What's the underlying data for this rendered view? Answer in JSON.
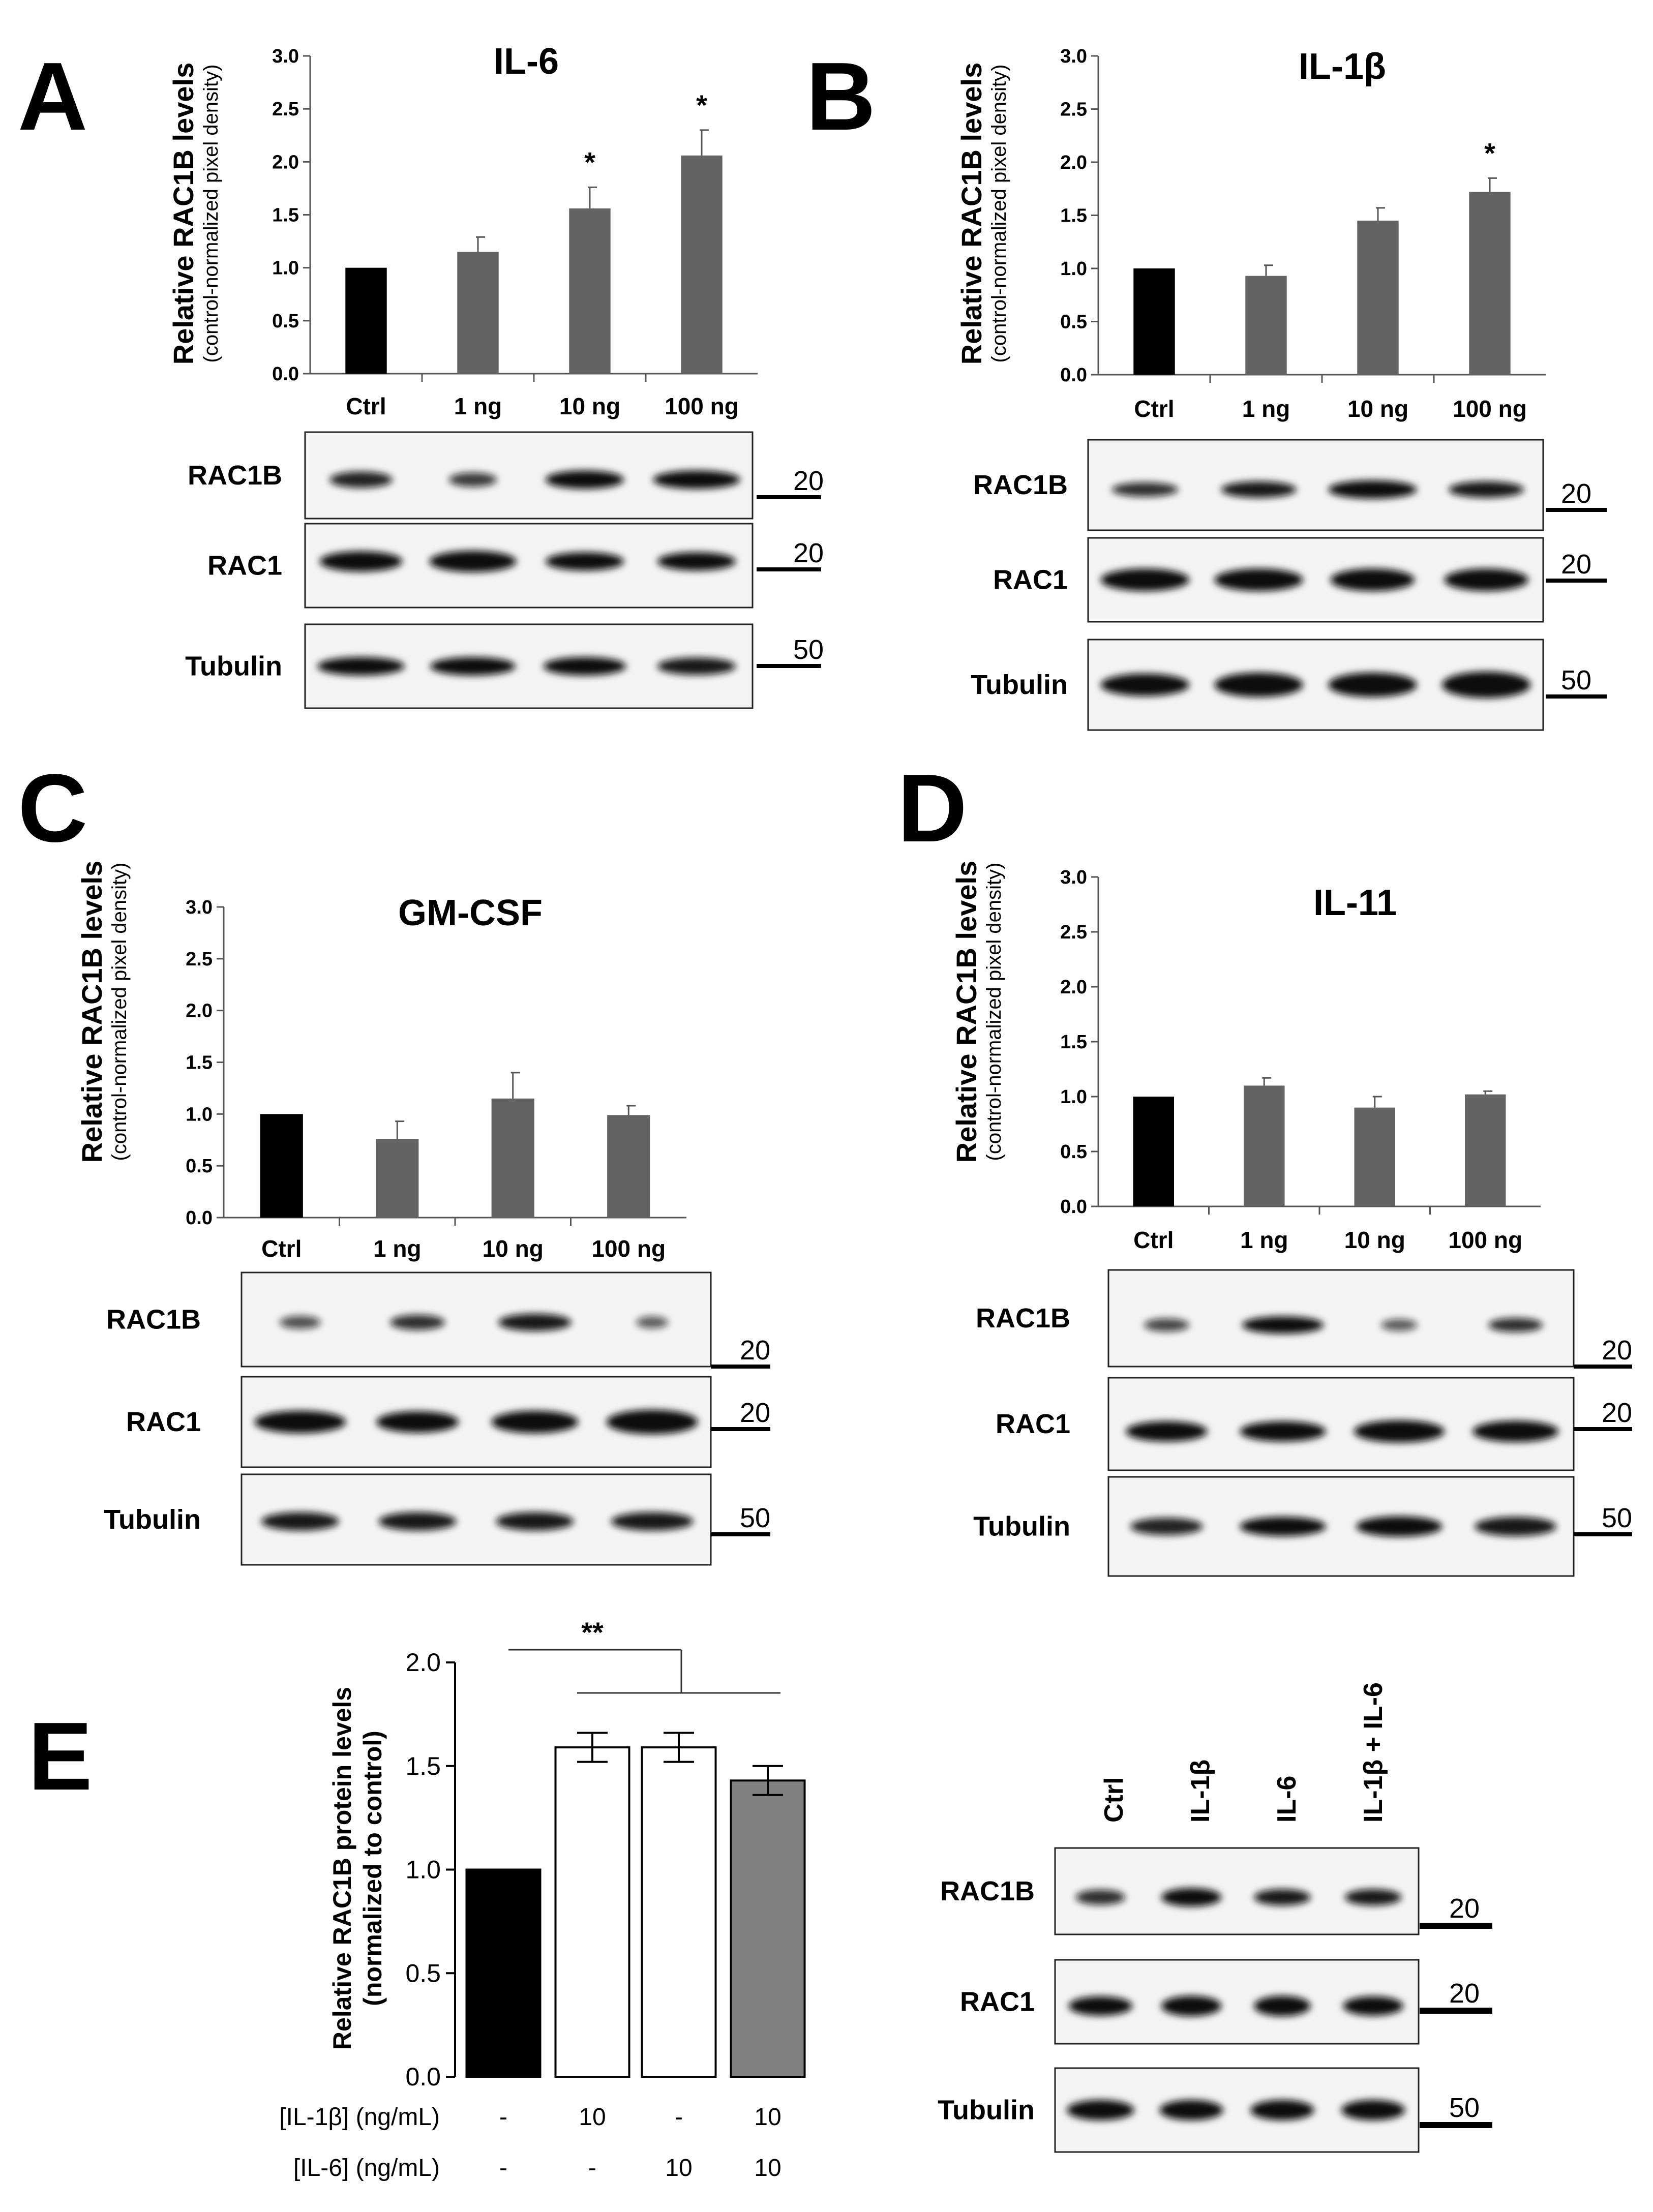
{
  "chart_data": [
    {
      "panel": "A",
      "type": "bar",
      "title": "IL-6",
      "ylabel": "Relative RAC1B levels",
      "ylabel_sub": "(control-normalized pixel density)",
      "categories": [
        "Ctrl",
        "1 ng",
        "10 ng",
        "100 ng"
      ],
      "values": [
        1.0,
        1.15,
        1.56,
        2.06
      ],
      "errors": [
        0.0,
        0.14,
        0.2,
        0.24
      ],
      "significance": [
        "",
        "",
        "*",
        "*"
      ],
      "ylim": [
        0,
        3.0
      ],
      "yticks": [
        "0.0",
        "0.5",
        "1.0",
        "1.5",
        "2.0",
        "2.5",
        "3.0"
      ],
      "bar_colors": [
        "#000000",
        "#636363",
        "#636363",
        "#636363"
      ],
      "blots": [
        {
          "label": "RAC1B",
          "mw": "20"
        },
        {
          "label": "RAC1",
          "mw": "20"
        },
        {
          "label": "Tubulin",
          "mw": "50"
        }
      ]
    },
    {
      "panel": "B",
      "type": "bar",
      "title": "IL-1β",
      "ylabel": "Relative RAC1B levels",
      "ylabel_sub": "(control-normalized pixel density)",
      "categories": [
        "Ctrl",
        "1 ng",
        "10 ng",
        "100 ng"
      ],
      "values": [
        1.0,
        0.93,
        1.45,
        1.72
      ],
      "errors": [
        0.0,
        0.1,
        0.12,
        0.13
      ],
      "significance": [
        "",
        "",
        "",
        "*"
      ],
      "ylim": [
        0,
        3.0
      ],
      "yticks": [
        "0.0",
        "0.5",
        "1.0",
        "1.5",
        "2.0",
        "2.5",
        "3.0"
      ],
      "bar_colors": [
        "#000000",
        "#636363",
        "#636363",
        "#636363"
      ],
      "blots": [
        {
          "label": "RAC1B",
          "mw": "20"
        },
        {
          "label": "RAC1",
          "mw": "20"
        },
        {
          "label": "Tubulin",
          "mw": "50"
        }
      ]
    },
    {
      "panel": "C",
      "type": "bar",
      "title": "GM-CSF",
      "ylabel": "Relative RAC1B levels",
      "ylabel_sub": "(control-normalized pixel density)",
      "categories": [
        "Ctrl",
        "1 ng",
        "10 ng",
        "100 ng"
      ],
      "values": [
        1.0,
        0.76,
        1.15,
        0.99
      ],
      "errors": [
        0.0,
        0.17,
        0.25,
        0.09
      ],
      "significance": [
        "",
        "",
        "",
        ""
      ],
      "ylim": [
        0,
        3.0
      ],
      "yticks": [
        "0.0",
        "0.5",
        "1.0",
        "1.5",
        "2.0",
        "2.5",
        "3.0"
      ],
      "bar_colors": [
        "#000000",
        "#636363",
        "#636363",
        "#636363"
      ],
      "blots": [
        {
          "label": "RAC1B",
          "mw": "20"
        },
        {
          "label": "RAC1",
          "mw": "20"
        },
        {
          "label": "Tubulin",
          "mw": "50"
        }
      ]
    },
    {
      "panel": "D",
      "type": "bar",
      "title": "IL-11",
      "ylabel": "Relative RAC1B levels",
      "ylabel_sub": "(control-normalized pixel density)",
      "categories": [
        "Ctrl",
        "1 ng",
        "10 ng",
        "100 ng"
      ],
      "values": [
        1.0,
        1.1,
        0.9,
        1.02
      ],
      "errors": [
        0.0,
        0.07,
        0.1,
        0.03
      ],
      "significance": [
        "",
        "",
        "",
        ""
      ],
      "ylim": [
        0,
        3.0
      ],
      "yticks": [
        "0.0",
        "0.5",
        "1.0",
        "1.5",
        "2.0",
        "2.5",
        "3.0"
      ],
      "bar_colors": [
        "#000000",
        "#636363",
        "#636363",
        "#636363"
      ],
      "blots": [
        {
          "label": "RAC1B",
          "mw": "20"
        },
        {
          "label": "RAC1",
          "mw": "20"
        },
        {
          "label": "Tubulin",
          "mw": "50"
        }
      ]
    },
    {
      "panel": "E",
      "type": "bar",
      "title": "",
      "ylabel": "Relative RAC1B protein levels",
      "ylabel_sub": "(normalized to control)",
      "values": [
        1.0,
        1.59,
        1.59,
        1.43
      ],
      "errors": [
        0.0,
        0.07,
        0.07,
        0.07
      ],
      "ylim": [
        0,
        2.0
      ],
      "yticks": [
        "0.0",
        "0.5",
        "1.0",
        "1.5",
        "2.0"
      ],
      "bar_colors": [
        "#000000",
        "#ffffff",
        "#ffffff",
        "#808080"
      ],
      "significance_label": "**",
      "condition_rows": [
        {
          "label": "[IL-1β] (ng/mL)",
          "values": [
            "-",
            "10",
            "-",
            "10"
          ]
        },
        {
          "label": "[IL-6] (ng/mL)",
          "values": [
            "-",
            "-",
            "10",
            "10"
          ]
        }
      ],
      "lanes": [
        "Ctrl",
        "IL-1β",
        "IL-6",
        "IL-1β + IL-6"
      ],
      "blots": [
        {
          "label": "RAC1B",
          "mw": "20"
        },
        {
          "label": "RAC1",
          "mw": "20"
        },
        {
          "label": "Tubulin",
          "mw": "50"
        }
      ]
    }
  ]
}
